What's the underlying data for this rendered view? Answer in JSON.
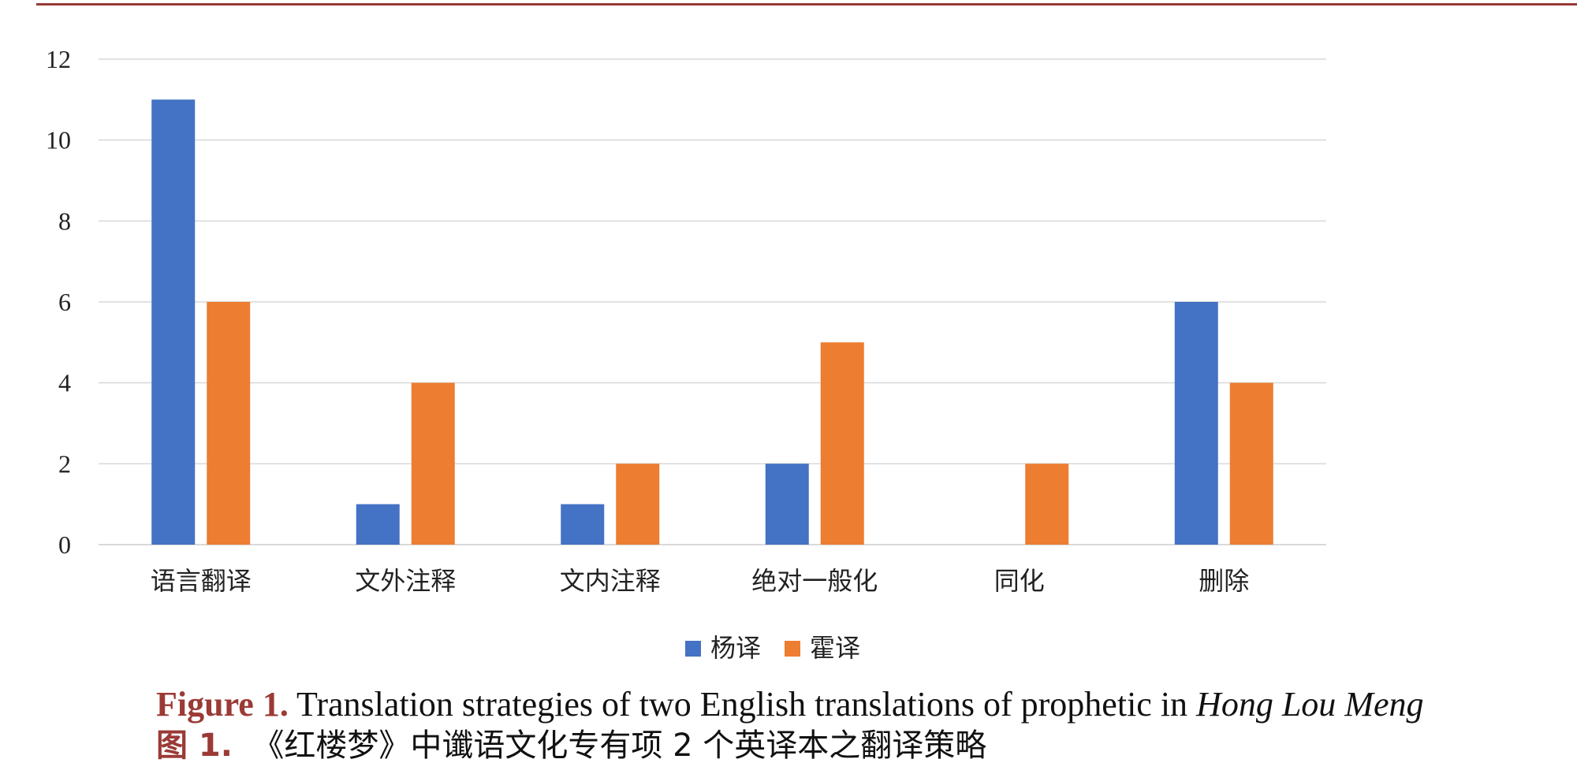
{
  "chart_data": {
    "type": "bar",
    "categories": [
      "语言翻译",
      "文外注释",
      "文内注释",
      "绝对一般化",
      "同化",
      "删除"
    ],
    "series": [
      {
        "name": "杨译",
        "values": [
          11,
          1,
          1,
          2,
          0,
          6
        ],
        "color": "#4472c4"
      },
      {
        "name": "霍译",
        "values": [
          6,
          4,
          2,
          5,
          2,
          4
        ],
        "color": "#ed7d31"
      }
    ],
    "ylim": [
      0,
      12
    ],
    "yticks": [
      0,
      2,
      4,
      6,
      8,
      10,
      12
    ],
    "grid": true,
    "legend_position": "bottom-center",
    "title": "",
    "xlabel": "",
    "ylabel": ""
  },
  "caption": {
    "en_label": "Figure 1.",
    "en_text": " Translation strategies of two English translations of prophetic in ",
    "en_italic": "Hong Lou Meng",
    "zh_label": "图 1.",
    "zh_text": "《红楼梦》中谶语文化专有项 2 个英译本之翻译策略"
  },
  "colors": {
    "rule": "#9b3a36",
    "grid": "#d9d9d9",
    "axis_text": "#222222"
  }
}
